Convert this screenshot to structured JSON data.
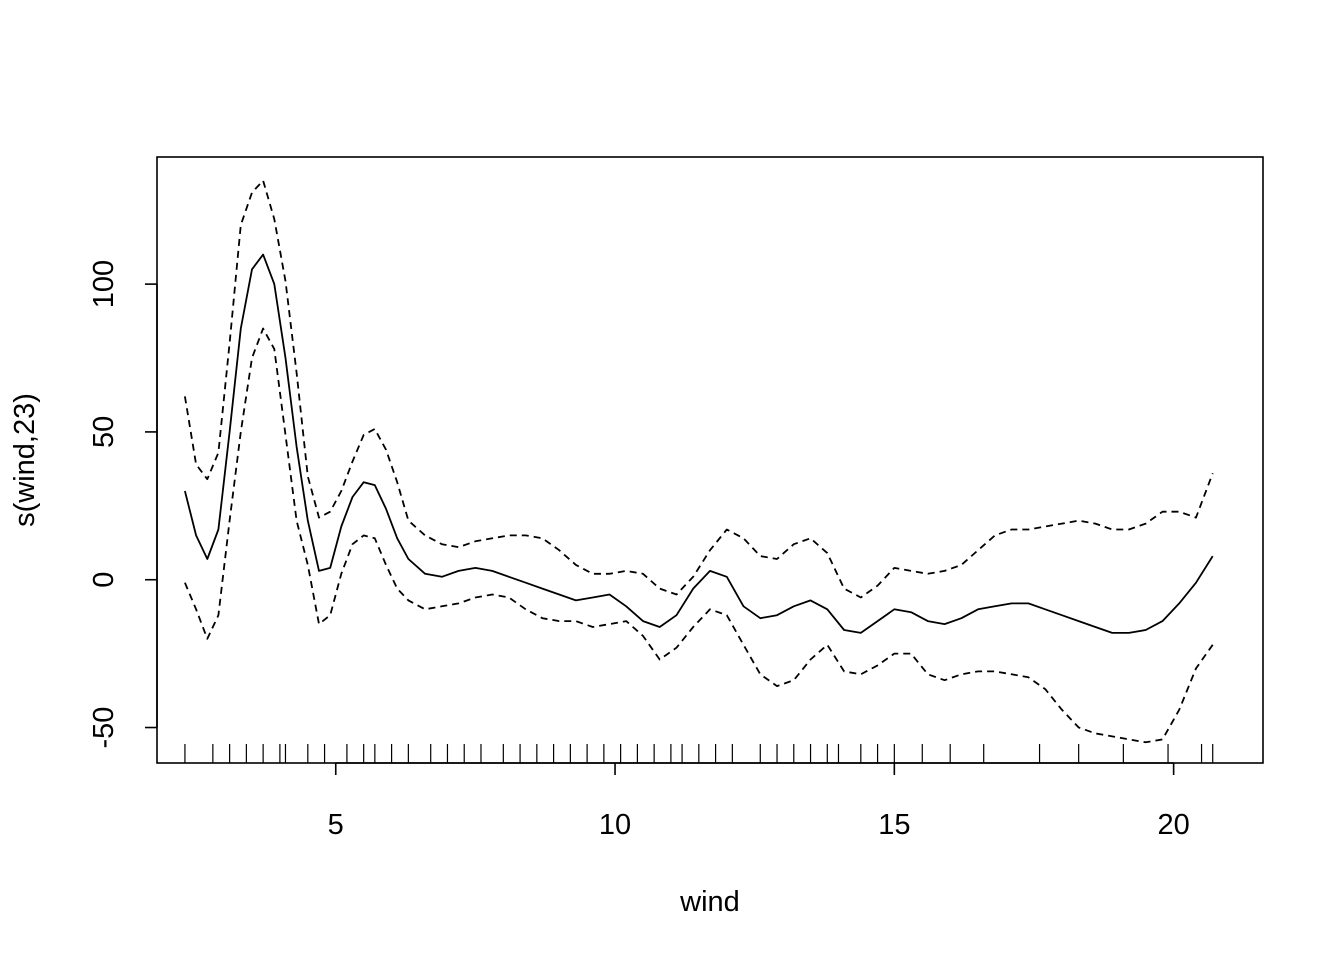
{
  "chart_data": {
    "type": "line",
    "title": "",
    "xlabel": "wind",
    "ylabel": "s(wind,23)",
    "xlim": [
      1.8,
      21.6
    ],
    "ylim": [
      -62,
      143
    ],
    "xticks": [
      5,
      10,
      15,
      20
    ],
    "yticks": [
      -50,
      0,
      50,
      100
    ],
    "grid": false,
    "legend": "none",
    "x": [
      2.3,
      2.5,
      2.7,
      2.9,
      3.1,
      3.3,
      3.5,
      3.7,
      3.9,
      4.1,
      4.3,
      4.5,
      4.7,
      4.9,
      5.1,
      5.3,
      5.5,
      5.7,
      5.9,
      6.1,
      6.3,
      6.6,
      6.9,
      7.2,
      7.5,
      7.8,
      8.1,
      8.4,
      8.7,
      9.0,
      9.3,
      9.6,
      9.9,
      10.2,
      10.5,
      10.8,
      11.1,
      11.4,
      11.7,
      12.0,
      12.3,
      12.6,
      12.9,
      13.2,
      13.5,
      13.8,
      14.1,
      14.4,
      14.7,
      15.0,
      15.3,
      15.6,
      15.9,
      16.2,
      16.5,
      16.8,
      17.1,
      17.4,
      17.7,
      18.0,
      18.3,
      18.6,
      18.9,
      19.2,
      19.5,
      19.8,
      20.1,
      20.4,
      20.7
    ],
    "series": [
      {
        "values": [
          30,
          15,
          7,
          17,
          50,
          85,
          105,
          110,
          100,
          75,
          45,
          20,
          3,
          4,
          18,
          28,
          33,
          32,
          24,
          14,
          7,
          2,
          1,
          3,
          4,
          3,
          1,
          -1,
          -3,
          -5,
          -7,
          -6,
          -5,
          -9,
          -14,
          -16,
          -12,
          -3,
          3,
          1,
          -9,
          -13,
          -12,
          -9,
          -7,
          -10,
          -17,
          -18,
          -14,
          -10,
          -11,
          -14,
          -15,
          -13,
          -10,
          -9,
          -8,
          -8,
          -10,
          -12,
          -14,
          -16,
          -18,
          -18,
          -17,
          -14,
          -8,
          -1,
          8
        ]
      },
      {
        "values": [
          62,
          39,
          34,
          43,
          80,
          120,
          131,
          135,
          122,
          101,
          70,
          35,
          21,
          23,
          30,
          40,
          49,
          51,
          44,
          33,
          20,
          15,
          12,
          11,
          13,
          14,
          15,
          15,
          14,
          10,
          5,
          2,
          2,
          3,
          2,
          -3,
          -5,
          1,
          10,
          17,
          14,
          8,
          7,
          12,
          14,
          9,
          -3,
          -6,
          -2,
          4,
          3,
          2,
          3,
          5,
          10,
          15,
          17,
          17,
          18,
          19,
          20,
          19,
          17,
          17,
          19,
          23,
          23,
          21,
          36
        ]
      },
      {
        "values": [
          -1,
          -10,
          -20,
          -12,
          20,
          50,
          75,
          85,
          78,
          49,
          20,
          5,
          -15,
          -12,
          2,
          12,
          15,
          14,
          5,
          -3,
          -7,
          -10,
          -9,
          -8,
          -6,
          -5,
          -6,
          -10,
          -13,
          -14,
          -14,
          -16,
          -15,
          -14,
          -19,
          -27,
          -23,
          -16,
          -10,
          -12,
          -22,
          -32,
          -36,
          -34,
          -27,
          -22,
          -31,
          -32,
          -29,
          -25,
          -25,
          -32,
          -34,
          -32,
          -31,
          -31,
          -32,
          -33,
          -37,
          -44,
          -50,
          -52,
          -53,
          -54,
          -55,
          -54,
          -44,
          -30,
          -22
        ]
      }
    ],
    "rug": [
      2.3,
      2.8,
      3.1,
      3.4,
      3.7,
      4.0,
      4.1,
      4.5,
      4.8,
      5.2,
      5.5,
      5.7,
      6.0,
      6.3,
      6.7,
      7.0,
      7.3,
      7.6,
      8.0,
      8.3,
      8.6,
      8.9,
      9.2,
      9.5,
      9.8,
      10.1,
      10.4,
      10.7,
      11.0,
      11.2,
      11.5,
      11.8,
      12.1,
      12.6,
      12.9,
      13.2,
      13.5,
      13.8,
      14.0,
      14.4,
      14.7,
      15.0,
      15.5,
      16.0,
      16.6,
      17.6,
      18.3,
      19.1,
      19.9,
      20.5,
      20.7
    ]
  }
}
